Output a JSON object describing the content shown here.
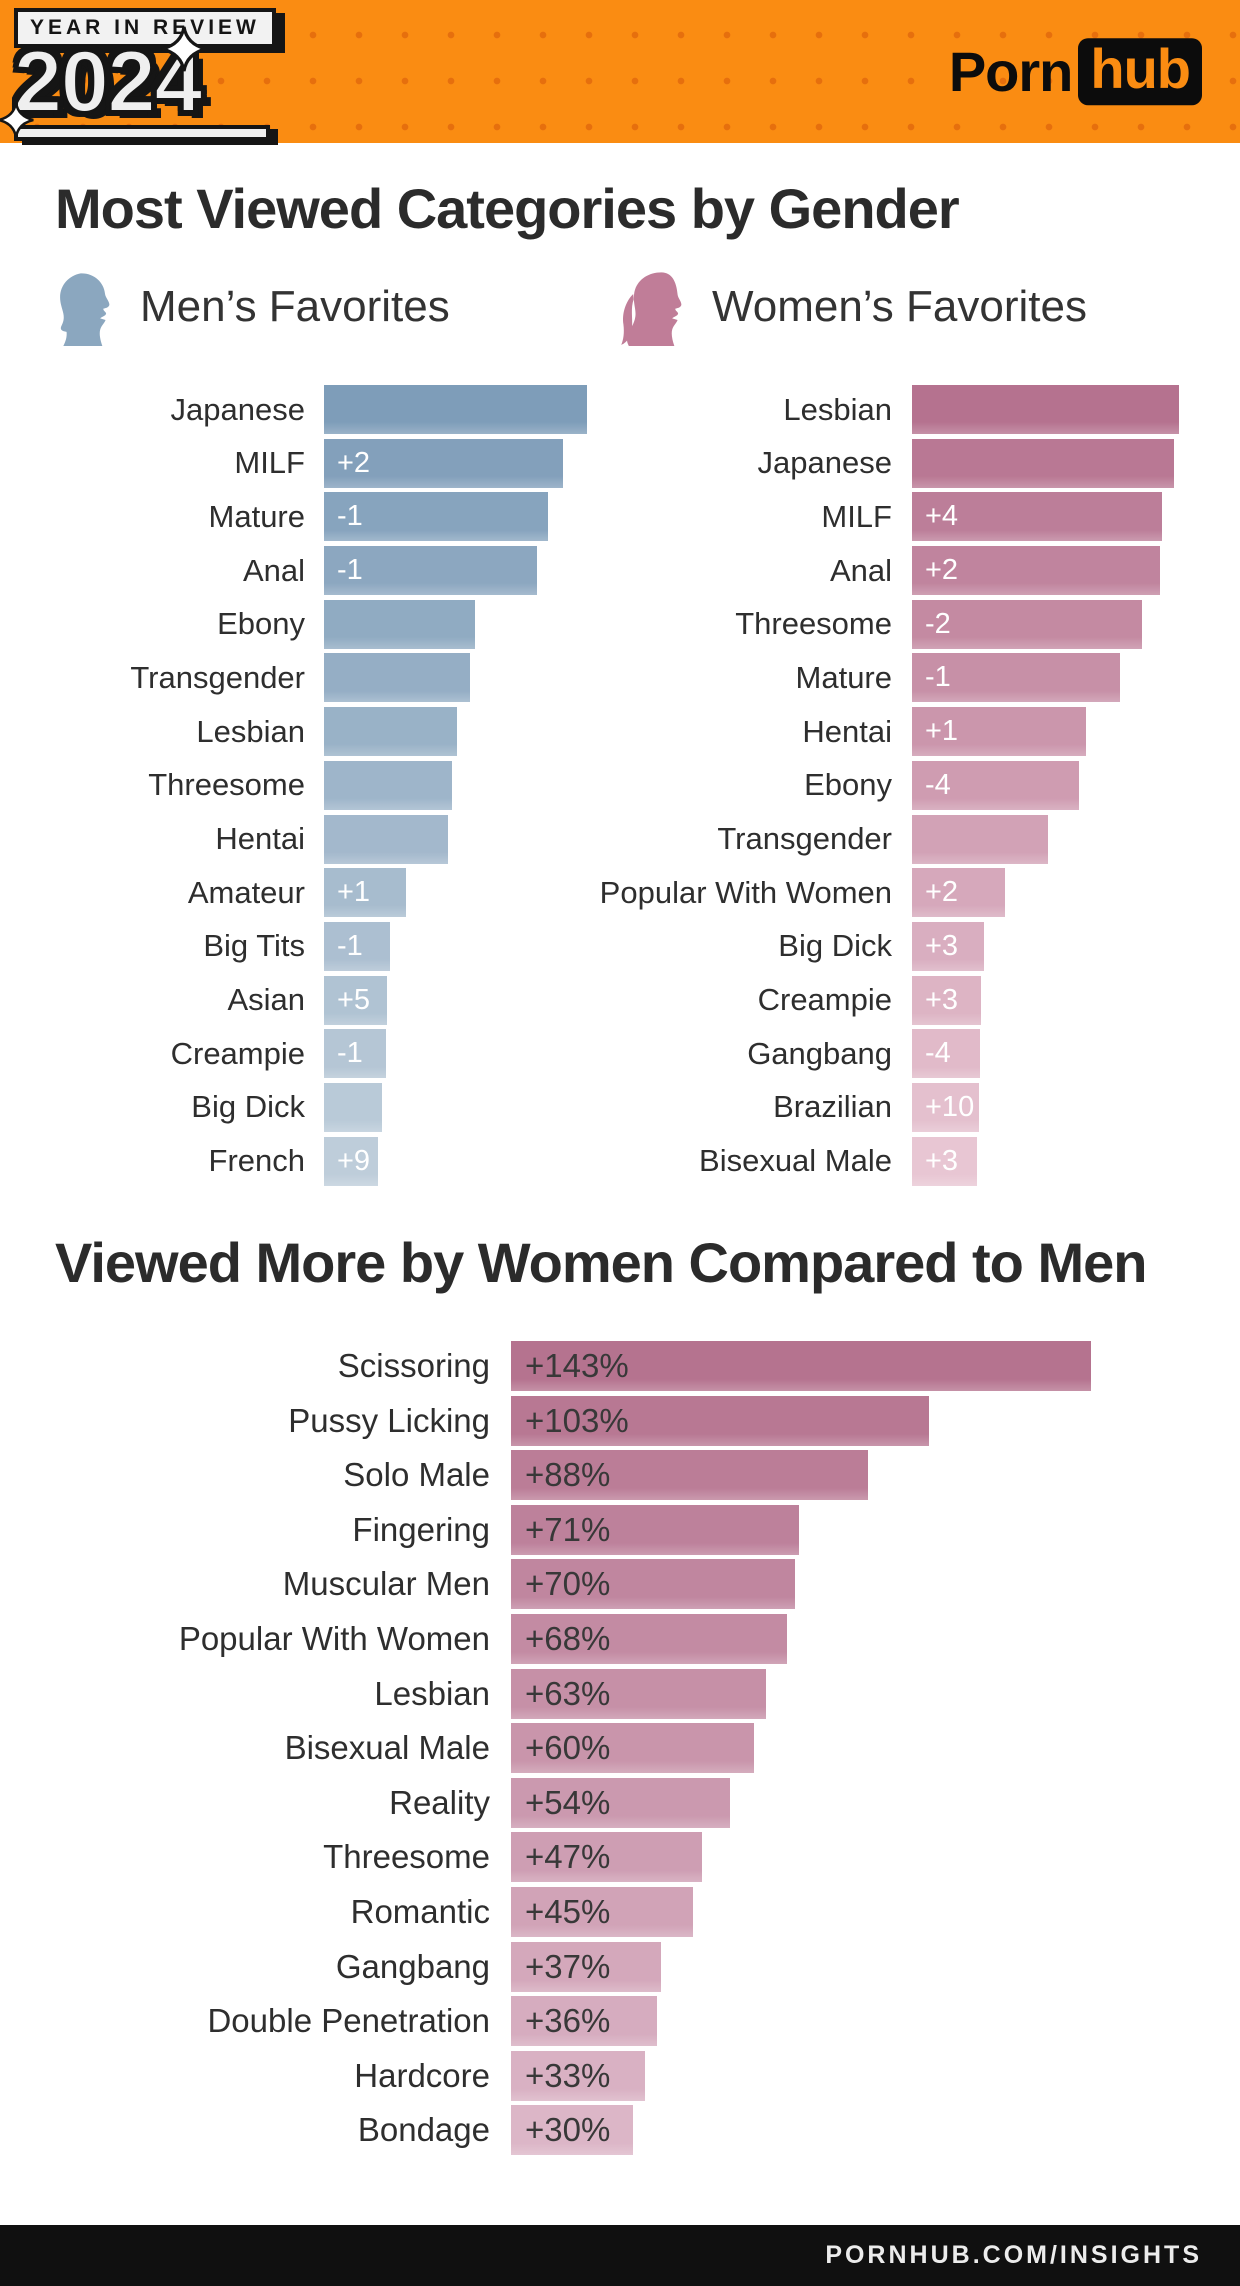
{
  "header": {
    "badge": "YEAR IN REVIEW",
    "year": "2024",
    "brand_porn": "Porn",
    "brand_hub": "hub"
  },
  "section1": {
    "title": "Most Viewed Categories by Gender",
    "men_heading": "Men’s Favorites",
    "women_heading": "Women’s Favorites"
  },
  "section2": {
    "title": "Viewed More by Women Compared to Men"
  },
  "footer": {
    "text": "PORNHUB.COM/INSIGHTS"
  },
  "colors": {
    "header_bg": "#fa8c12",
    "header_dot": "#e66f0d",
    "men_icon": "#8ba7bf",
    "women_icon": "#c07d98",
    "men_bar_start": "#7e9db9",
    "men_bar_end": "#becdda",
    "women_bar_start": "#b5728f",
    "women_bar_end": "#e8c6d3",
    "compare_bar_start": "#b5738f",
    "compare_bar_end": "#dcb6c7",
    "badge_text": "#ffffff",
    "compare_value_text": "#383838"
  },
  "chart_data": [
    {
      "type": "bar",
      "orientation": "horizontal",
      "title": "Men's Favorites",
      "note": "ranked list; bar lengths relative to longest (no numeric axis shown); rank_change badges shown in white on bars",
      "categories": [
        "Japanese",
        "MILF",
        "Mature",
        "Anal",
        "Ebony",
        "Transgender",
        "Lesbian",
        "Threesome",
        "Hentai",
        "Amateur",
        "Big Tits",
        "Asian",
        "Creampie",
        "Big Dick",
        "French"
      ],
      "values": [
        100,
        91,
        85,
        81,
        57.5,
        55.5,
        50.5,
        48.5,
        47,
        31,
        25,
        24,
        23.5,
        22,
        20.5
      ],
      "rank_change": [
        "",
        "+2",
        "-1",
        "-1",
        "",
        "",
        "",
        "",
        "",
        "+1",
        "-1",
        "+5",
        "-1",
        "",
        "+9"
      ]
    },
    {
      "type": "bar",
      "orientation": "horizontal",
      "title": "Women's Favorites",
      "note": "ranked list; bar lengths relative to longest (no numeric axis shown); rank_change badges shown in white on bars",
      "categories": [
        "Lesbian",
        "Japanese",
        "MILF",
        "Anal",
        "Threesome",
        "Mature",
        "Hentai",
        "Ebony",
        "Transgender",
        "Popular With Women",
        "Big Dick",
        "Creampie",
        "Gangbang",
        "Brazilian",
        "Bisexual Male"
      ],
      "values": [
        100,
        98,
        93.5,
        93,
        86,
        78,
        65,
        62.5,
        51,
        35,
        27,
        26,
        25.5,
        25,
        24.5
      ],
      "rank_change": [
        "",
        "",
        "+4",
        "+2",
        "-2",
        "-1",
        "+1",
        "-4",
        "",
        "+2",
        "+3",
        "+3",
        "-4",
        "+10",
        "+3"
      ]
    },
    {
      "type": "bar",
      "orientation": "horizontal",
      "title": "Viewed More by Women Compared to Men",
      "xlabel": "",
      "ylabel": "",
      "xlim": [
        0,
        143
      ],
      "categories": [
        "Scissoring",
        "Pussy Licking",
        "Solo Male",
        "Fingering",
        "Muscular Men",
        "Popular With Women",
        "Lesbian",
        "Bisexual Male",
        "Reality",
        "Threesome",
        "Romantic",
        "Gangbang",
        "Double Penetration",
        "Hardcore",
        "Bondage"
      ],
      "values": [
        143,
        103,
        88,
        71,
        70,
        68,
        63,
        60,
        54,
        47,
        45,
        37,
        36,
        33,
        30
      ],
      "value_labels": [
        "+143%",
        "+103%",
        "+88%",
        "+71%",
        "+70%",
        "+68%",
        "+63%",
        "+60%",
        "+54%",
        "+47%",
        "+45%",
        "+37%",
        "+36%",
        "+33%",
        "+30%"
      ]
    }
  ]
}
